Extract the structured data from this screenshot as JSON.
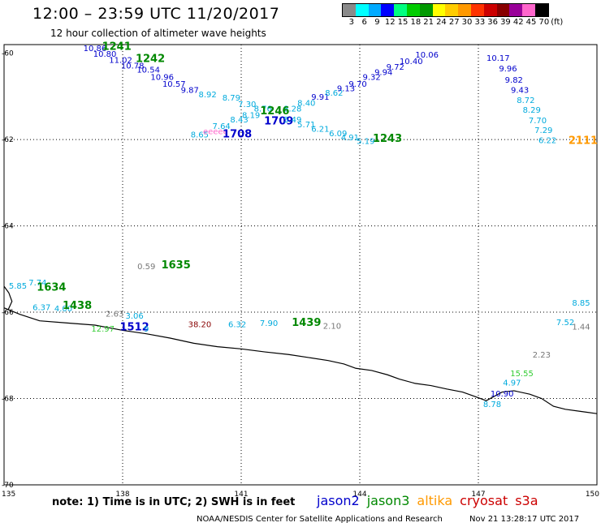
{
  "header": {
    "title": "12:00 – 23:59 UTC 11/20/2017",
    "subtitle": "12 hour collection of altimeter wave heights"
  },
  "colorbar": {
    "unit_label": "(ft)",
    "labels": [
      "3",
      "6",
      "9",
      "12",
      "15",
      "18",
      "21",
      "24",
      "27",
      "30",
      "33",
      "36",
      "39",
      "42",
      "45",
      "70"
    ],
    "colors": [
      "#8a8a8a",
      "#00ffff",
      "#00aaff",
      "#0000ff",
      "#00ff80",
      "#00cc00",
      "#009900",
      "#ffff00",
      "#ffcc00",
      "#ff9900",
      "#ff3300",
      "#cc0000",
      "#880000",
      "#990099",
      "#ff66cc",
      "#000000"
    ]
  },
  "axes": {
    "lon_ticks": [
      "135",
      "138",
      "141",
      "144",
      "147",
      "150"
    ],
    "lat_ticks": [
      "-60",
      "-62",
      "-64",
      "-66",
      "-68",
      "-70"
    ]
  },
  "map_data": {
    "lon_range": [
      135,
      150
    ],
    "lat_range": [
      -70,
      -59.8
    ],
    "grid_lons": [
      138,
      141,
      144,
      147
    ],
    "grid_lats": [
      -62,
      -64,
      -66,
      -68
    ],
    "coastline": [
      [
        135.0,
        -65.9
      ],
      [
        135.4,
        -66.05
      ],
      [
        135.9,
        -66.2
      ],
      [
        136.6,
        -66.25
      ],
      [
        137.3,
        -66.3
      ],
      [
        138.0,
        -66.42
      ],
      [
        138.6,
        -66.5
      ],
      [
        139.2,
        -66.6
      ],
      [
        139.8,
        -66.72
      ],
      [
        140.4,
        -66.8
      ],
      [
        141.0,
        -66.85
      ],
      [
        141.6,
        -66.92
      ],
      [
        142.2,
        -66.98
      ],
      [
        142.7,
        -67.05
      ],
      [
        143.2,
        -67.12
      ],
      [
        143.6,
        -67.2
      ],
      [
        143.9,
        -67.3
      ],
      [
        144.3,
        -67.35
      ],
      [
        144.7,
        -67.45
      ],
      [
        145.0,
        -67.55
      ],
      [
        145.4,
        -67.65
      ],
      [
        145.8,
        -67.7
      ],
      [
        146.2,
        -67.78
      ],
      [
        146.6,
        -67.85
      ],
      [
        146.9,
        -67.95
      ],
      [
        147.2,
        -68.05
      ],
      [
        147.6,
        -67.85
      ],
      [
        147.9,
        -67.82
      ],
      [
        148.3,
        -67.9
      ],
      [
        148.6,
        -68.0
      ],
      [
        148.9,
        -68.18
      ],
      [
        149.2,
        -68.25
      ],
      [
        149.6,
        -68.3
      ],
      [
        150.0,
        -68.35
      ]
    ],
    "coast_west": [
      [
        135.0,
        -65.4
      ],
      [
        135.12,
        -65.55
      ],
      [
        135.2,
        -65.75
      ],
      [
        135.1,
        -65.95
      ]
    ],
    "points": [
      {
        "label": "10.86",
        "lon": 137.3,
        "lat": -59.95,
        "color": "#0000cc"
      },
      {
        "label": "1241",
        "lon": 137.85,
        "lat": -59.92,
        "color": "#008800",
        "bold": true
      },
      {
        "label": "10.80",
        "lon": 137.55,
        "lat": -60.08,
        "color": "#0000cc"
      },
      {
        "label": "11.02",
        "lon": 137.95,
        "lat": -60.22,
        "color": "#0000cc"
      },
      {
        "label": "1242",
        "lon": 138.7,
        "lat": -60.2,
        "color": "#008800",
        "bold": true
      },
      {
        "label": "10.78",
        "lon": 138.25,
        "lat": -60.35,
        "color": "#0000cc"
      },
      {
        "label": "10.54",
        "lon": 138.65,
        "lat": -60.45,
        "color": "#0000cc"
      },
      {
        "label": "10.96",
        "lon": 139.0,
        "lat": -60.62,
        "color": "#0000cc"
      },
      {
        "label": "10.57",
        "lon": 139.3,
        "lat": -60.78,
        "color": "#0000cc"
      },
      {
        "label": "9.87",
        "lon": 139.7,
        "lat": -60.92,
        "color": "#0000cc"
      },
      {
        "label": "8.92",
        "lon": 140.15,
        "lat": -61.02,
        "color": "#00aadd"
      },
      {
        "label": "8.79",
        "lon": 140.75,
        "lat": -61.1,
        "color": "#00aadd"
      },
      {
        "label": "7.30",
        "lon": 141.15,
        "lat": -61.25,
        "color": "#00aadd"
      },
      {
        "label": "8.76",
        "lon": 141.55,
        "lat": -61.35,
        "color": "#00aadd"
      },
      {
        "label": "8.28",
        "lon": 142.3,
        "lat": -61.35,
        "color": "#00aadd"
      },
      {
        "label": "1246",
        "lon": 141.85,
        "lat": -61.42,
        "color": "#008800",
        "bold": true
      },
      {
        "label": "8.40",
        "lon": 142.65,
        "lat": -61.22,
        "color": "#00aadd"
      },
      {
        "label": "9.91",
        "lon": 143.0,
        "lat": -61.08,
        "color": "#0000cc"
      },
      {
        "label": "8.62",
        "lon": 143.35,
        "lat": -60.98,
        "color": "#00aadd"
      },
      {
        "label": "9.13",
        "lon": 143.65,
        "lat": -60.88,
        "color": "#0000cc"
      },
      {
        "label": "9.70",
        "lon": 143.95,
        "lat": -60.78,
        "color": "#0000cc"
      },
      {
        "label": "9.32",
        "lon": 144.3,
        "lat": -60.62,
        "color": "#0000cc"
      },
      {
        "label": "9.94",
        "lon": 144.6,
        "lat": -60.5,
        "color": "#0000cc"
      },
      {
        "label": "9.72",
        "lon": 144.9,
        "lat": -60.38,
        "color": "#0000cc"
      },
      {
        "label": "10.40",
        "lon": 145.3,
        "lat": -60.25,
        "color": "#0000cc"
      },
      {
        "label": "10.06",
        "lon": 145.7,
        "lat": -60.1,
        "color": "#0000cc"
      },
      {
        "label": "7.64",
        "lon": 140.5,
        "lat": -61.75,
        "color": "#00aadd"
      },
      {
        "label": "8.43",
        "lon": 140.95,
        "lat": -61.6,
        "color": "#00aadd"
      },
      {
        "label": "8.19",
        "lon": 141.25,
        "lat": -61.5,
        "color": "#00aadd"
      },
      {
        "label": "1709",
        "lon": 141.95,
        "lat": -61.65,
        "color": "#0000cc",
        "bold": true
      },
      {
        "label": "5.49",
        "lon": 142.3,
        "lat": -61.6,
        "color": "#00aadd"
      },
      {
        "label": "5.71",
        "lon": 142.65,
        "lat": -61.72,
        "color": "#00aadd"
      },
      {
        "label": "6.21",
        "lon": 143.0,
        "lat": -61.82,
        "color": "#00aadd"
      },
      {
        "label": "6.09",
        "lon": 143.45,
        "lat": -61.92,
        "color": "#00aadd"
      },
      {
        "label": "4.91",
        "lon": 143.75,
        "lat": -62.02,
        "color": "#00aadd"
      },
      {
        "label": "5.19",
        "lon": 144.15,
        "lat": -62.1,
        "color": "#00aadd"
      },
      {
        "label": "1243",
        "lon": 144.7,
        "lat": -62.05,
        "color": "#008800",
        "bold": true
      },
      {
        "label": "8.65",
        "lon": 139.95,
        "lat": -61.95,
        "color": "#00aadd"
      },
      {
        "label": "eeeee",
        "lon": 140.35,
        "lat": -61.88,
        "color": "#ff66cc"
      },
      {
        "label": "1708",
        "lon": 140.9,
        "lat": -61.95,
        "color": "#0000cc",
        "bold": true
      },
      {
        "label": "10.17",
        "lon": 147.5,
        "lat": -60.18,
        "color": "#0000cc"
      },
      {
        "label": "9.96",
        "lon": 147.75,
        "lat": -60.42,
        "color": "#0000cc"
      },
      {
        "label": "9.82",
        "lon": 147.9,
        "lat": -60.68,
        "color": "#0000cc"
      },
      {
        "label": "9.43",
        "lon": 148.05,
        "lat": -60.92,
        "color": "#0000cc"
      },
      {
        "label": "8.72",
        "lon": 148.2,
        "lat": -61.15,
        "color": "#00aadd"
      },
      {
        "label": "8.29",
        "lon": 148.35,
        "lat": -61.38,
        "color": "#00aadd"
      },
      {
        "label": "7.70",
        "lon": 148.5,
        "lat": -61.62,
        "color": "#00aadd"
      },
      {
        "label": "7.29",
        "lon": 148.65,
        "lat": -61.85,
        "color": "#00aadd"
      },
      {
        "label": "6.22",
        "lon": 148.75,
        "lat": -62.08,
        "color": "#00aadd"
      },
      {
        "label": "2111",
        "lon": 149.65,
        "lat": -62.1,
        "color": "#ff9900",
        "bold": true
      },
      {
        "label": "0.59",
        "lon": 138.6,
        "lat": -65.0,
        "color": "#777777"
      },
      {
        "label": "1635",
        "lon": 139.35,
        "lat": -64.98,
        "color": "#008800",
        "bold": true
      },
      {
        "label": "5.85",
        "lon": 135.35,
        "lat": -65.45,
        "color": "#00aadd"
      },
      {
        "label": "7.74",
        "lon": 135.85,
        "lat": -65.38,
        "color": "#00aadd"
      },
      {
        "label": "1634",
        "lon": 136.2,
        "lat": -65.5,
        "color": "#008800",
        "bold": true
      },
      {
        "label": "6.37",
        "lon": 135.95,
        "lat": -65.95,
        "color": "#00aadd"
      },
      {
        "label": "4.00",
        "lon": 136.5,
        "lat": -65.98,
        "color": "#00aadd"
      },
      {
        "label": "1438",
        "lon": 136.85,
        "lat": -65.92,
        "color": "#008800",
        "bold": true
      },
      {
        "label": "2.63",
        "lon": 137.8,
        "lat": -66.1,
        "color": "#777777"
      },
      {
        "label": "3.06",
        "lon": 138.3,
        "lat": -66.15,
        "color": "#00aadd"
      },
      {
        "label": "12.97",
        "lon": 137.5,
        "lat": -66.45,
        "color": "#33cc33"
      },
      {
        "label": "1512",
        "lon": 138.3,
        "lat": -66.42,
        "color": "#0000cc",
        "bold": true
      },
      {
        "label": "9",
        "lon": 138.6,
        "lat": -66.45,
        "color": "#00aadd"
      },
      {
        "label": "38.20",
        "lon": 139.95,
        "lat": -66.35,
        "color": "#880000"
      },
      {
        "label": "6.32",
        "lon": 140.9,
        "lat": -66.35,
        "color": "#00aadd"
      },
      {
        "label": "7.90",
        "lon": 141.7,
        "lat": -66.32,
        "color": "#00aadd"
      },
      {
        "label": "1439",
        "lon": 142.65,
        "lat": -66.32,
        "color": "#008800",
        "bold": true
      },
      {
        "label": "2.10",
        "lon": 143.3,
        "lat": -66.38,
        "color": "#777777"
      },
      {
        "label": "8.85",
        "lon": 149.6,
        "lat": -65.85,
        "color": "#00aadd"
      },
      {
        "label": "7.52",
        "lon": 149.2,
        "lat": -66.3,
        "color": "#00aadd"
      },
      {
        "label": "1.44",
        "lon": 149.6,
        "lat": -66.4,
        "color": "#777777"
      },
      {
        "label": "2.23",
        "lon": 148.6,
        "lat": -67.05,
        "color": "#777777"
      },
      {
        "label": "15.55",
        "lon": 148.1,
        "lat": -67.48,
        "color": "#33cc33"
      },
      {
        "label": "4.97",
        "lon": 147.85,
        "lat": -67.7,
        "color": "#00aadd"
      },
      {
        "label": "10.90",
        "lon": 147.6,
        "lat": -67.95,
        "color": "#0000cc"
      },
      {
        "label": "8.78",
        "lon": 147.35,
        "lat": -68.2,
        "color": "#00aadd"
      }
    ]
  },
  "footer": {
    "note": "note:  1) Time is in UTC;  2) SWH is in feet",
    "satellites": [
      {
        "name": "jason2",
        "color": "#0000cc"
      },
      {
        "name": "jason3",
        "color": "#008800"
      },
      {
        "name": "altika",
        "color": "#ff9900"
      },
      {
        "name": "cryosat",
        "color": "#cc0000"
      },
      {
        "name": "s3a",
        "color": "#cc0000"
      }
    ],
    "credit": "NOAA/NESDIS Center for Satellite Applications and Research",
    "timestamp": "Nov 21 13:28:17 UTC 2017"
  }
}
